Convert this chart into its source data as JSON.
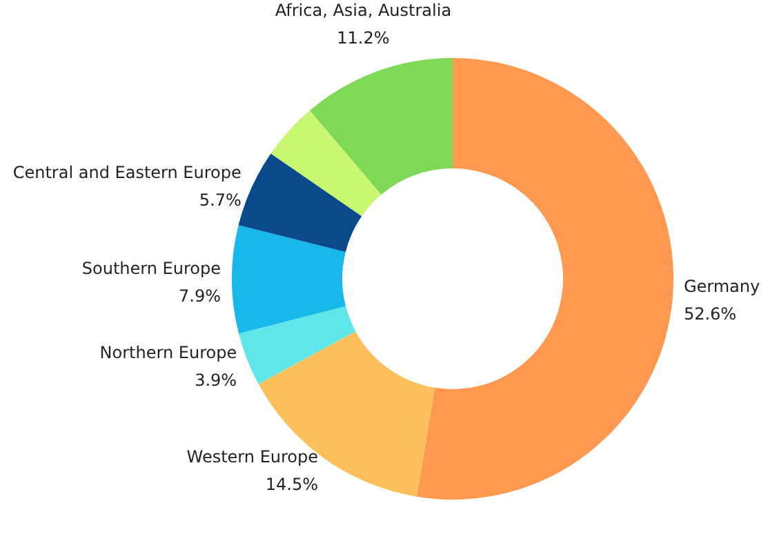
{
  "chart_data": {
    "type": "donut",
    "categories": [
      "Germany",
      "Western Europe",
      "Northern Europe",
      "Southern Europe",
      "Central and Eastern Europe",
      null,
      "Africa, Asia, Australia"
    ],
    "values": [
      52.6,
      14.5,
      3.9,
      7.9,
      5.7,
      4.2,
      11.2
    ],
    "value_labels": [
      "52.6%",
      "14.5%",
      "3.9%",
      "7.9%",
      "5.7%",
      null,
      "11.2%"
    ],
    "colors": [
      "#ff9950",
      "#ffc05c",
      "#5ee6e8",
      "#19b8ea",
      "#0b4a8a",
      "#c8f870",
      "#7fd957"
    ]
  }
}
